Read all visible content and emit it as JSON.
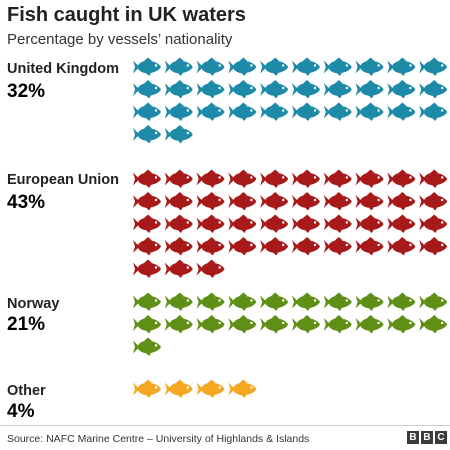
{
  "title": "Fish caught in UK waters",
  "subtitle": "Percentage by vessels’ nationality",
  "source": "Source: NAFC Marine Centre – University of Highlands & Islands",
  "logo": [
    "B",
    "B",
    "C"
  ],
  "chart_data": {
    "type": "pictogram",
    "title": "Fish caught in UK waters",
    "subtitle": "Percentage by vessels’ nationality",
    "icon": "fish-icon",
    "categories": [
      {
        "name": "United Kingdom",
        "label": "32%",
        "value": 32,
        "color": "#1d8aa8"
      },
      {
        "name": "European Union",
        "label": "43%",
        "value": 43,
        "color": "#a81a1a"
      },
      {
        "name": "Norway",
        "label": "21%",
        "value": 21,
        "color": "#5f8f15"
      },
      {
        "name": "Other",
        "label": "4%",
        "value": 4,
        "color": "#f5a623"
      }
    ]
  }
}
